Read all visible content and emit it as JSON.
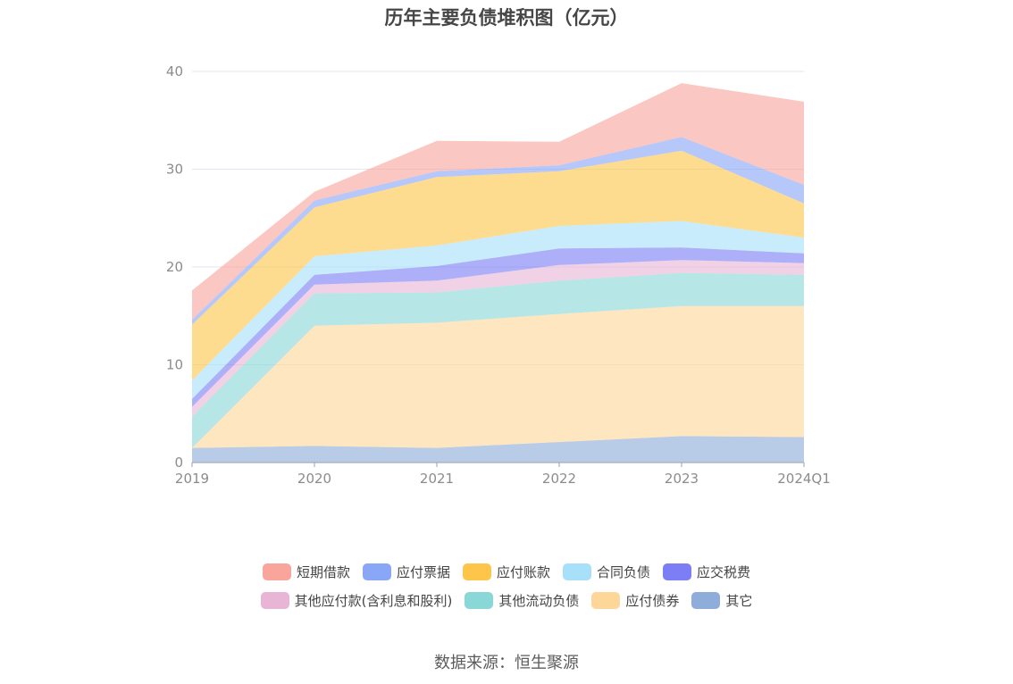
{
  "title": "历年主要负债堆积图（亿元）",
  "source": "数据来源：恒生聚源",
  "chart_data": {
    "type": "area",
    "stacked": true,
    "title": "历年主要负债堆积图（亿元）",
    "x": [
      "2019",
      "2020",
      "2021",
      "2022",
      "2023",
      "2024Q1"
    ],
    "ylim": [
      0,
      40
    ],
    "yticks": [
      0,
      10,
      20,
      30,
      40
    ],
    "grid": true,
    "legend_position": "bottom",
    "series": [
      {
        "name": "其它",
        "color": "#8eadd9",
        "values": [
          1.5,
          1.7,
          1.5,
          2.1,
          2.7,
          2.6
        ]
      },
      {
        "name": "应付债券",
        "color": "#fdd79a",
        "values": [
          0.0,
          12.3,
          12.8,
          13.1,
          13.3,
          13.4
        ]
      },
      {
        "name": "其他流动负债",
        "color": "#8ad7d7",
        "values": [
          3.2,
          3.3,
          3.1,
          3.4,
          3.4,
          3.2
        ]
      },
      {
        "name": "其他应付款(含利息和股利)",
        "color": "#e9b5d6",
        "values": [
          1.0,
          0.9,
          1.2,
          1.6,
          1.3,
          1.2
        ]
      },
      {
        "name": "应交税费",
        "color": "#7c7ef5",
        "values": [
          0.8,
          1.0,
          1.5,
          1.7,
          1.3,
          1.0
        ]
      },
      {
        "name": "合同负债",
        "color": "#a8e0fa",
        "values": [
          1.9,
          1.9,
          2.1,
          2.3,
          2.7,
          1.6
        ]
      },
      {
        "name": "应付账款",
        "color": "#fdc64a",
        "values": [
          5.7,
          5.0,
          7.0,
          5.6,
          7.2,
          3.5
        ]
      },
      {
        "name": "应付票据",
        "color": "#89a6f7",
        "values": [
          0.5,
          0.7,
          0.6,
          0.6,
          1.4,
          1.9
        ]
      },
      {
        "name": "短期借款",
        "color": "#f9a59c",
        "values": [
          3.0,
          0.9,
          3.1,
          2.4,
          5.5,
          8.5
        ]
      }
    ]
  },
  "legend_rows": [
    [
      {
        "label": "短期借款",
        "color": "#f9a59c"
      },
      {
        "label": "应付票据",
        "color": "#89a6f7"
      },
      {
        "label": "应付账款",
        "color": "#fdc64a"
      },
      {
        "label": "合同负债",
        "color": "#a8e0fa"
      },
      {
        "label": "应交税费",
        "color": "#7c7ef5"
      }
    ],
    [
      {
        "label": "其他应付款(含利息和股利)",
        "color": "#e9b5d6"
      },
      {
        "label": "其他流动负债",
        "color": "#8ad7d7"
      },
      {
        "label": "应付债券",
        "color": "#fdd79a"
      },
      {
        "label": "其它",
        "color": "#8eadd9"
      }
    ]
  ]
}
